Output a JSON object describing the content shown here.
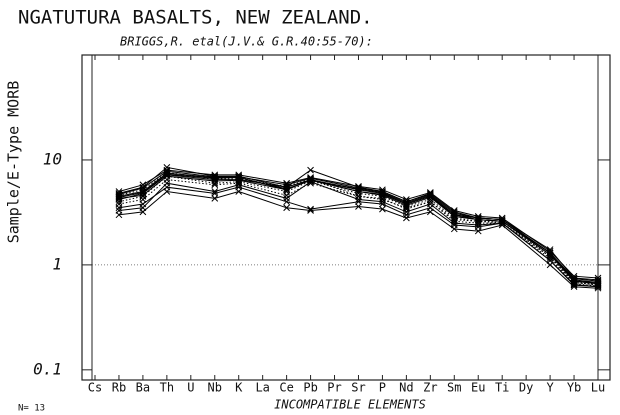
{
  "chart_data": {
    "type": "line",
    "title": "NGATUTURA BASALTS, NEW ZEALAND.",
    "subtitle": "BRIGGS,R. etal(J.V.& G.R.40:55-70):",
    "xlabel": "INCOMPATIBLE ELEMENTS",
    "ylabel": "Sample/E-Type MORB",
    "annotation": "N= 13",
    "categories": [
      "Cs",
      "Rb",
      "Ba",
      "Th",
      "U",
      "Nb",
      "K",
      "La",
      "Ce",
      "Pb",
      "Pr",
      "Sr",
      "P",
      "Nd",
      "Zr",
      "Sm",
      "Eu",
      "Ti",
      "Dy",
      "Y",
      "Yb",
      "Lu"
    ],
    "log_scale": true,
    "ylim": [
      0.08,
      100
    ],
    "yticks": [
      0.1,
      1,
      10
    ],
    "reference_line": 1,
    "marker": "x",
    "series": [
      {
        "color": "#000000",
        "x": [
          "Rb",
          "Ba",
          "Th",
          "Nb",
          "K",
          "Ce",
          "Pb",
          "Sr",
          "P",
          "Nd",
          "Zr",
          "Sm",
          "Eu",
          "Ti",
          "Y",
          "Yb",
          "Lu"
        ],
        "values": [
          4.8,
          5.5,
          8.5,
          7.0,
          7.0,
          5.5,
          8.0,
          5.5,
          5.0,
          4.0,
          4.8,
          3.2,
          2.8,
          2.7,
          1.4,
          0.75,
          0.72
        ]
      },
      {
        "color": "#000000",
        "x": [
          "Rb",
          "Ba",
          "Th",
          "Nb",
          "K",
          "Ce",
          "Pb",
          "Sr",
          "P",
          "Nd",
          "Zr",
          "Sm",
          "Eu",
          "Ti",
          "Y",
          "Yb",
          "Lu"
        ],
        "values": [
          4.5,
          5.0,
          7.5,
          6.8,
          6.8,
          5.2,
          6.5,
          5.2,
          4.8,
          3.8,
          4.5,
          3.0,
          2.7,
          2.6,
          1.3,
          0.7,
          0.68
        ]
      },
      {
        "color": "#000000",
        "x": [
          "Rb",
          "Ba",
          "Th",
          "Nb",
          "K",
          "Ce",
          "Pb",
          "Sr",
          "P",
          "Nd",
          "Zr",
          "Sm",
          "Eu",
          "Ti",
          "Y",
          "Yb",
          "Lu"
        ],
        "values": [
          3.0,
          3.2,
          5.0,
          4.3,
          5.0,
          3.5,
          3.3,
          3.6,
          3.4,
          2.8,
          3.2,
          2.2,
          2.1,
          2.4,
          1.0,
          0.62,
          0.6
        ]
      },
      {
        "color": "#000000",
        "x": [
          "Rb",
          "Ba",
          "Th",
          "Nb",
          "K",
          "Ce",
          "Pb",
          "Sr",
          "P",
          "Nd",
          "Zr",
          "Sm",
          "Eu",
          "Ti",
          "Y",
          "Yb",
          "Lu"
        ],
        "values": [
          3.5,
          3.8,
          5.5,
          4.8,
          5.5,
          4.0,
          3.4,
          4.0,
          3.8,
          3.0,
          3.5,
          2.4,
          2.3,
          2.5,
          1.1,
          0.65,
          0.62
        ]
      },
      {
        "color": "#000000",
        "linestyle": "dotted",
        "x": [
          "Rb",
          "Ba",
          "Th",
          "Nb",
          "K",
          "Ce",
          "Pb",
          "Sr",
          "P",
          "Nd",
          "Zr",
          "Sm",
          "Eu",
          "Ti",
          "Y",
          "Yb",
          "Lu"
        ],
        "values": [
          4.0,
          4.5,
          7.0,
          6.0,
          6.2,
          5.0,
          6.3,
          4.8,
          4.5,
          3.6,
          4.2,
          2.8,
          2.6,
          2.6,
          1.2,
          0.68,
          0.65
        ]
      },
      {
        "color": "#000000",
        "x": [
          "Rb",
          "Ba",
          "Th",
          "Nb",
          "K",
          "Ce",
          "Pb",
          "Sr",
          "P",
          "Nd",
          "Zr",
          "Sm",
          "Eu",
          "Ti",
          "Y",
          "Yb",
          "Lu"
        ],
        "values": [
          4.2,
          4.8,
          7.2,
          6.5,
          6.5,
          5.5,
          6.5,
          5.0,
          4.6,
          3.7,
          4.4,
          2.9,
          2.7,
          2.6,
          1.25,
          0.7,
          0.66
        ]
      },
      {
        "color": "#000000",
        "x": [
          "Rb",
          "Ba",
          "Th",
          "Nb",
          "K",
          "Ce",
          "Pb",
          "Sr",
          "P",
          "Nd",
          "Zr",
          "Sm",
          "Eu",
          "Ti",
          "Y",
          "Yb",
          "Lu"
        ],
        "values": [
          5.0,
          5.8,
          8.0,
          7.2,
          7.2,
          6.0,
          6.8,
          5.6,
          5.2,
          4.2,
          4.9,
          3.3,
          2.9,
          2.8,
          1.35,
          0.78,
          0.75
        ]
      },
      {
        "color": "#000000",
        "linestyle": "dotted",
        "x": [
          "Rb",
          "Ba",
          "Th",
          "Nb",
          "K",
          "Ce",
          "Pb",
          "Sr",
          "P",
          "Nd",
          "Zr",
          "Sm",
          "Eu",
          "Ti",
          "Y",
          "Yb",
          "Lu"
        ],
        "values": [
          4.6,
          5.2,
          7.6,
          6.6,
          6.6,
          5.6,
          6.6,
          4.5,
          4.2,
          3.5,
          4.0,
          2.7,
          2.6,
          2.5,
          1.2,
          0.68,
          0.64
        ]
      },
      {
        "color": "#000000",
        "linestyle": "dotted",
        "x": [
          "Rb",
          "Ba",
          "Th",
          "Nb",
          "K",
          "Ce",
          "Pb",
          "Sr",
          "P",
          "Nd",
          "Zr",
          "Sm",
          "Eu",
          "Ti",
          "Y",
          "Yb",
          "Lu"
        ],
        "values": [
          3.8,
          4.2,
          6.5,
          5.8,
          6.0,
          4.6,
          6.0,
          4.5,
          4.3,
          3.4,
          4.0,
          2.6,
          2.5,
          2.5,
          1.15,
          0.66,
          0.63
        ]
      },
      {
        "color": "#000000",
        "x": [
          "Rb",
          "Ba",
          "Th",
          "Nb",
          "K",
          "Ce",
          "Pb",
          "Sr",
          "P",
          "Nd",
          "Zr",
          "Sm",
          "Eu",
          "Ti",
          "Y",
          "Yb",
          "Lu"
        ],
        "values": [
          4.4,
          4.9,
          7.3,
          6.7,
          6.8,
          5.3,
          6.4,
          5.3,
          4.9,
          3.9,
          4.6,
          3.0,
          2.8,
          2.7,
          1.3,
          0.72,
          0.68
        ]
      },
      {
        "color": "#000000",
        "x": [
          "Rb",
          "Ba",
          "Th",
          "Nb",
          "K",
          "Ce",
          "Pb",
          "Sr",
          "P",
          "Nd",
          "Zr",
          "Sm",
          "Eu",
          "Ti",
          "Y",
          "Yb",
          "Lu"
        ],
        "values": [
          4.7,
          5.4,
          7.8,
          6.9,
          6.9,
          5.8,
          6.7,
          5.4,
          5.0,
          4.0,
          4.7,
          3.1,
          2.8,
          2.7,
          1.3,
          0.74,
          0.7
        ]
      },
      {
        "color": "#000000",
        "x": [
          "Rb",
          "Ba",
          "Th",
          "Nb",
          "K",
          "Ce",
          "Pb",
          "Sr",
          "P",
          "Nd",
          "Zr",
          "Sm",
          "Eu",
          "Ti",
          "Y",
          "Yb",
          "Lu"
        ],
        "values": [
          3.3,
          3.5,
          6.0,
          5.0,
          5.8,
          4.3,
          6.2,
          4.2,
          4.0,
          3.2,
          3.8,
          2.5,
          2.4,
          2.5,
          1.1,
          0.64,
          0.62
        ]
      },
      {
        "color": "#000000",
        "x": [
          "Rb",
          "Ba",
          "Th",
          "Nb",
          "K",
          "Ce",
          "Pb",
          "Sr",
          "P",
          "Nd",
          "Zr",
          "Sm",
          "Eu",
          "Ti",
          "Y",
          "Yb",
          "Lu"
        ],
        "values": [
          4.3,
          4.6,
          7.0,
          6.3,
          6.4,
          5.2,
          6.4,
          5.0,
          4.7,
          3.8,
          4.5,
          2.9,
          2.7,
          2.6,
          1.25,
          0.7,
          0.66
        ]
      }
    ]
  }
}
